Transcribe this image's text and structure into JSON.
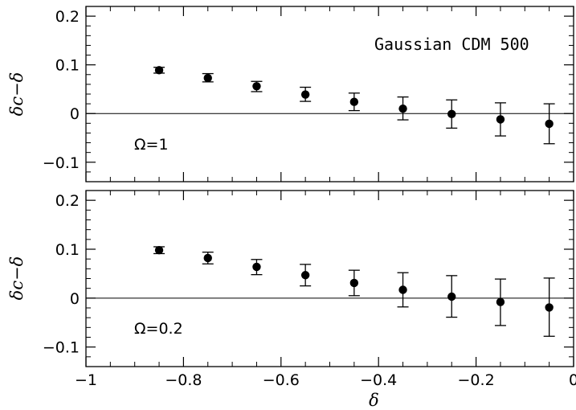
{
  "chart_data": [
    {
      "type": "scatter",
      "title": "Gaussian CDM 500",
      "annotation": "Ω=1",
      "xlabel": "δ",
      "ylabel": "δc−δ",
      "xlim": [
        -1,
        0
      ],
      "ylim": [
        -0.14,
        0.22
      ],
      "yticks": [
        -0.1,
        0,
        0.1,
        0.2
      ],
      "ytick_labels": [
        "−0.1",
        "0",
        "0.1",
        "0.2"
      ],
      "reference_line_y": 0,
      "points": [
        {
          "x": -0.85,
          "y": 0.089,
          "err_low": 0.083,
          "err_high": 0.095
        },
        {
          "x": -0.75,
          "y": 0.073,
          "err_low": 0.065,
          "err_high": 0.082
        },
        {
          "x": -0.65,
          "y": 0.056,
          "err_low": 0.045,
          "err_high": 0.066
        },
        {
          "x": -0.55,
          "y": 0.039,
          "err_low": 0.025,
          "err_high": 0.054
        },
        {
          "x": -0.45,
          "y": 0.024,
          "err_low": 0.006,
          "err_high": 0.042
        },
        {
          "x": -0.35,
          "y": 0.01,
          "err_low": -0.013,
          "err_high": 0.034
        },
        {
          "x": -0.25,
          "y": -0.001,
          "err_low": -0.03,
          "err_high": 0.028
        },
        {
          "x": -0.15,
          "y": -0.012,
          "err_low": -0.046,
          "err_high": 0.022
        },
        {
          "x": -0.05,
          "y": -0.021,
          "err_low": -0.062,
          "err_high": 0.02
        }
      ]
    },
    {
      "type": "scatter",
      "annotation": "Ω=0.2",
      "xlabel": "δ",
      "ylabel": "δc−δ",
      "xlim": [
        -1,
        0
      ],
      "ylim": [
        -0.14,
        0.22
      ],
      "yticks": [
        -0.1,
        0,
        0.1,
        0.2
      ],
      "ytick_labels": [
        "−0.1",
        "0",
        "0.1",
        "0.2"
      ],
      "xticks": [
        -1,
        -0.8,
        -0.6,
        -0.4,
        -0.2,
        0
      ],
      "xtick_labels": [
        "−1",
        "−0.8",
        "−0.6",
        "−0.4",
        "−0.2",
        "0"
      ],
      "reference_line_y": 0,
      "points": [
        {
          "x": -0.85,
          "y": 0.098,
          "err_low": 0.091,
          "err_high": 0.105
        },
        {
          "x": -0.75,
          "y": 0.082,
          "err_low": 0.07,
          "err_high": 0.094
        },
        {
          "x": -0.65,
          "y": 0.064,
          "err_low": 0.048,
          "err_high": 0.079
        },
        {
          "x": -0.55,
          "y": 0.047,
          "err_low": 0.025,
          "err_high": 0.069
        },
        {
          "x": -0.45,
          "y": 0.031,
          "err_low": 0.005,
          "err_high": 0.057
        },
        {
          "x": -0.35,
          "y": 0.017,
          "err_low": -0.018,
          "err_high": 0.052
        },
        {
          "x": -0.25,
          "y": 0.003,
          "err_low": -0.039,
          "err_high": 0.046
        },
        {
          "x": -0.15,
          "y": -0.008,
          "err_low": -0.056,
          "err_high": 0.039
        },
        {
          "x": -0.05,
          "y": -0.019,
          "err_low": -0.078,
          "err_high": 0.041
        }
      ]
    }
  ]
}
